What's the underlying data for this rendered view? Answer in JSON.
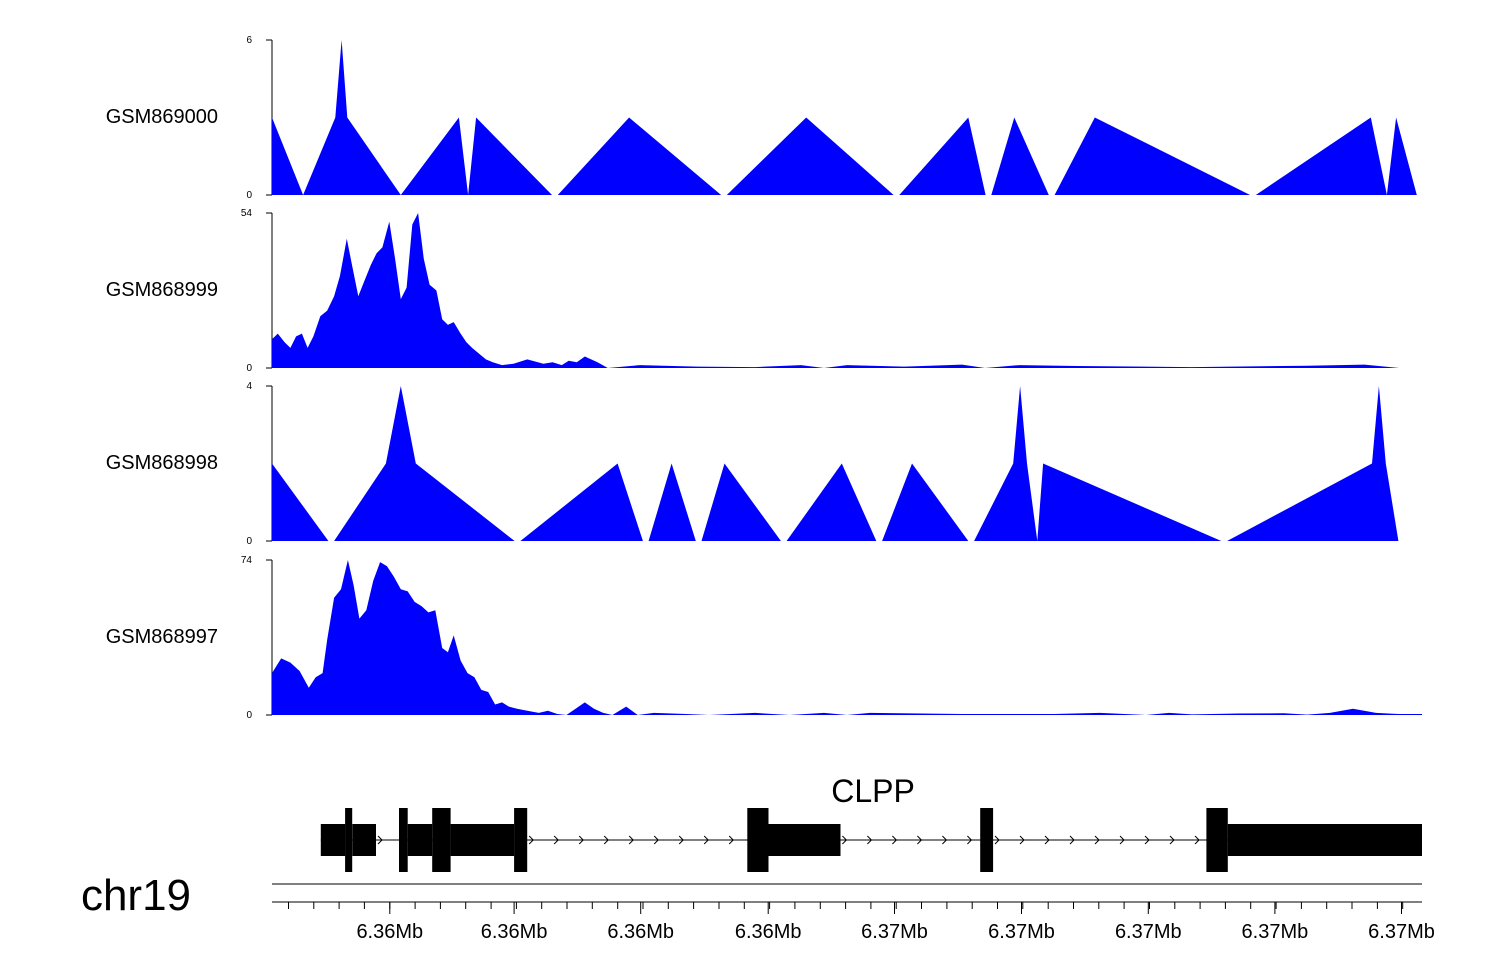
{
  "colors": {
    "fill": "#0000ff",
    "axis": "#000000",
    "gene": "#000000"
  },
  "chart_data": {
    "type": "area",
    "chromosome": "chr19",
    "gene": {
      "name": "CLPP",
      "strand": "+",
      "exons": [
        {
          "start": 0.0424,
          "end": 0.0636,
          "kind": "utr"
        },
        {
          "start": 0.0636,
          "end": 0.0698,
          "kind": "tall"
        },
        {
          "start": 0.0698,
          "end": 0.0904,
          "kind": "utr"
        },
        {
          "start": 0.1104,
          "end": 0.118,
          "kind": "tall"
        },
        {
          "start": 0.118,
          "end": 0.1393,
          "kind": "utr"
        },
        {
          "start": 0.1393,
          "end": 0.1553,
          "kind": "tall"
        },
        {
          "start": 0.1553,
          "end": 0.2105,
          "kind": "utr"
        },
        {
          "start": 0.2105,
          "end": 0.2219,
          "kind": "tall"
        },
        {
          "start": 0.4133,
          "end": 0.4317,
          "kind": "tall"
        },
        {
          "start": 0.4317,
          "end": 0.4943,
          "kind": "utr"
        },
        {
          "start": 0.6158,
          "end": 0.627,
          "kind": "tall"
        },
        {
          "start": 0.8125,
          "end": 0.8311,
          "kind": "tall"
        },
        {
          "start": 0.8311,
          "end": 1.0,
          "kind": "utr"
        }
      ]
    },
    "x_ticks": [
      "6.36Mb",
      "6.36Mb",
      "6.36Mb",
      "6.36Mb",
      "6.37Mb",
      "6.37Mb",
      "6.37Mb",
      "6.37Mb",
      "6.37Mb"
    ],
    "x_tick_positions": [
      0.1024,
      0.2105,
      0.3206,
      0.4315,
      0.5413,
      0.6517,
      0.762,
      0.8721,
      0.9822
    ],
    "series": [
      {
        "name": "GSM869000",
        "ylim": [
          0,
          6
        ],
        "points": [
          [
            0.0,
            3
          ],
          [
            0.027,
            0
          ],
          [
            0.055,
            3
          ],
          [
            0.0605,
            6
          ],
          [
            0.0655,
            3
          ],
          [
            0.112,
            0
          ],
          [
            0.1625,
            3
          ],
          [
            0.1705,
            0
          ],
          [
            0.1775,
            3
          ],
          [
            0.2435,
            0
          ],
          [
            0.2485,
            0
          ],
          [
            0.3105,
            3
          ],
          [
            0.3905,
            0
          ],
          [
            0.3955,
            0
          ],
          [
            0.4645,
            3
          ],
          [
            0.5405,
            0
          ],
          [
            0.5455,
            0
          ],
          [
            0.6055,
            3
          ],
          [
            0.6205,
            0
          ],
          [
            0.6255,
            0
          ],
          [
            0.6455,
            3
          ],
          [
            0.6755,
            0
          ],
          [
            0.6805,
            0
          ],
          [
            0.7155,
            3
          ],
          [
            0.8505,
            0
          ],
          [
            0.8555,
            0
          ],
          [
            0.9555,
            3
          ],
          [
            0.9695,
            0
          ],
          [
            0.9775,
            3
          ],
          [
            0.9955,
            0
          ]
        ]
      },
      {
        "name": "GSM868999",
        "ylim": [
          0,
          54
        ],
        "points": [
          [
            0.0,
            10
          ],
          [
            0.005,
            12
          ],
          [
            0.011,
            9
          ],
          [
            0.016,
            7
          ],
          [
            0.021,
            11
          ],
          [
            0.026,
            12
          ],
          [
            0.031,
            7
          ],
          [
            0.036,
            11
          ],
          [
            0.042,
            18
          ],
          [
            0.048,
            20
          ],
          [
            0.054,
            25
          ],
          [
            0.059,
            32
          ],
          [
            0.065,
            45
          ],
          [
            0.07,
            35
          ],
          [
            0.075,
            25
          ],
          [
            0.08,
            30
          ],
          [
            0.086,
            36
          ],
          [
            0.091,
            40
          ],
          [
            0.096,
            42
          ],
          [
            0.102,
            51
          ],
          [
            0.107,
            38
          ],
          [
            0.112,
            24
          ],
          [
            0.117,
            28
          ],
          [
            0.122,
            50
          ],
          [
            0.127,
            54
          ],
          [
            0.132,
            38
          ],
          [
            0.137,
            29
          ],
          [
            0.143,
            27
          ],
          [
            0.148,
            17
          ],
          [
            0.153,
            15
          ],
          [
            0.158,
            16
          ],
          [
            0.164,
            12
          ],
          [
            0.169,
            9
          ],
          [
            0.174,
            7
          ],
          [
            0.18,
            5
          ],
          [
            0.186,
            3
          ],
          [
            0.192,
            2
          ],
          [
            0.2,
            1
          ],
          [
            0.21,
            1.5
          ],
          [
            0.222,
            3
          ],
          [
            0.236,
            1.5
          ],
          [
            0.244,
            2
          ],
          [
            0.252,
            1
          ],
          [
            0.258,
            2.5
          ],
          [
            0.265,
            2
          ],
          [
            0.272,
            4
          ],
          [
            0.283,
            2
          ],
          [
            0.292,
            0
          ],
          [
            0.32,
            1
          ],
          [
            0.37,
            0.5
          ],
          [
            0.42,
            0.3
          ],
          [
            0.46,
            1
          ],
          [
            0.48,
            0
          ],
          [
            0.5,
            1
          ],
          [
            0.55,
            0.5
          ],
          [
            0.6,
            1.2
          ],
          [
            0.62,
            0
          ],
          [
            0.65,
            1
          ],
          [
            0.7,
            0.7
          ],
          [
            0.8,
            0.3
          ],
          [
            0.9,
            0.8
          ],
          [
            0.95,
            1.2
          ],
          [
            0.98,
            0
          ]
        ]
      },
      {
        "name": "GSM868998",
        "ylim": [
          0,
          4
        ],
        "points": [
          [
            0.0,
            2
          ],
          [
            0.049,
            0
          ],
          [
            0.054,
            0
          ],
          [
            0.099,
            2
          ],
          [
            0.112,
            4
          ],
          [
            0.125,
            2
          ],
          [
            0.211,
            0
          ],
          [
            0.216,
            0
          ],
          [
            0.3005,
            2
          ],
          [
            0.3225,
            0
          ],
          [
            0.3275,
            0
          ],
          [
            0.3475,
            2
          ],
          [
            0.3685,
            0
          ],
          [
            0.3735,
            0
          ],
          [
            0.3935,
            2
          ],
          [
            0.4425,
            0
          ],
          [
            0.4475,
            0
          ],
          [
            0.4955,
            2
          ],
          [
            0.5255,
            0
          ],
          [
            0.5305,
            0
          ],
          [
            0.5565,
            2
          ],
          [
            0.6055,
            0
          ],
          [
            0.6105,
            0
          ],
          [
            0.6445,
            2
          ],
          [
            0.6505,
            4
          ],
          [
            0.6565,
            2
          ],
          [
            0.6655,
            0
          ],
          [
            0.6705,
            2
          ],
          [
            0.8255,
            0
          ],
          [
            0.8305,
            0
          ],
          [
            0.9565,
            2
          ],
          [
            0.9625,
            4
          ],
          [
            0.9685,
            2
          ],
          [
            0.9795,
            0
          ]
        ]
      },
      {
        "name": "GSM868997",
        "ylim": [
          0,
          74
        ],
        "points": [
          [
            0.0,
            20
          ],
          [
            0.008,
            27
          ],
          [
            0.016,
            25
          ],
          [
            0.024,
            21
          ],
          [
            0.032,
            13
          ],
          [
            0.038,
            18
          ],
          [
            0.044,
            20
          ],
          [
            0.048,
            36
          ],
          [
            0.054,
            56
          ],
          [
            0.06,
            60
          ],
          [
            0.066,
            74
          ],
          [
            0.071,
            62
          ],
          [
            0.076,
            46
          ],
          [
            0.082,
            50
          ],
          [
            0.088,
            64
          ],
          [
            0.094,
            73
          ],
          [
            0.1,
            71
          ],
          [
            0.106,
            66
          ],
          [
            0.112,
            60
          ],
          [
            0.118,
            59
          ],
          [
            0.124,
            54
          ],
          [
            0.13,
            52
          ],
          [
            0.136,
            49
          ],
          [
            0.142,
            50
          ],
          [
            0.148,
            32
          ],
          [
            0.153,
            30
          ],
          [
            0.158,
            38
          ],
          [
            0.164,
            26
          ],
          [
            0.17,
            20
          ],
          [
            0.176,
            18
          ],
          [
            0.182,
            12
          ],
          [
            0.188,
            11
          ],
          [
            0.194,
            5
          ],
          [
            0.2,
            6
          ],
          [
            0.206,
            4
          ],
          [
            0.213,
            3
          ],
          [
            0.222,
            2
          ],
          [
            0.232,
            1
          ],
          [
            0.24,
            2
          ],
          [
            0.248,
            0.5
          ],
          [
            0.256,
            0
          ],
          [
            0.264,
            3
          ],
          [
            0.272,
            6
          ],
          [
            0.28,
            3
          ],
          [
            0.288,
            1
          ],
          [
            0.296,
            0
          ],
          [
            0.308,
            4
          ],
          [
            0.318,
            0
          ],
          [
            0.332,
            1
          ],
          [
            0.36,
            0.5
          ],
          [
            0.38,
            0
          ],
          [
            0.42,
            1
          ],
          [
            0.45,
            0
          ],
          [
            0.48,
            1
          ],
          [
            0.5,
            0
          ],
          [
            0.52,
            1
          ],
          [
            0.6,
            0.5
          ],
          [
            0.68,
            0.5
          ],
          [
            0.72,
            1
          ],
          [
            0.76,
            0
          ],
          [
            0.78,
            1
          ],
          [
            0.8,
            0.3
          ],
          [
            0.84,
            0.7
          ],
          [
            0.88,
            0.8
          ],
          [
            0.9,
            0.2
          ],
          [
            0.92,
            1
          ],
          [
            0.94,
            3
          ],
          [
            0.96,
            1
          ],
          [
            0.98,
            0.5
          ],
          [
            1.0,
            0.5
          ]
        ]
      }
    ]
  }
}
